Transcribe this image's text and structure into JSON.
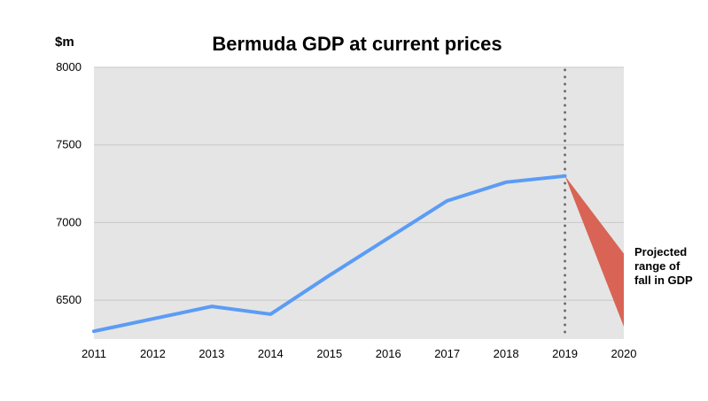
{
  "chart_data": {
    "type": "line",
    "title": "Bermuda GDP at current prices",
    "ylabel": "$m",
    "xlabel": "",
    "x": [
      2011,
      2012,
      2013,
      2014,
      2015,
      2016,
      2017,
      2018,
      2019,
      2020
    ],
    "xlim": [
      2011,
      2020
    ],
    "ylim": [
      6250,
      8000
    ],
    "yticks": [
      6500,
      7000,
      7500,
      8000
    ],
    "grid": true,
    "series": [
      {
        "x": [
          2011,
          2012,
          2013,
          2014,
          2015,
          2016,
          2017,
          2018,
          2019
        ],
        "values": [
          6300,
          6380,
          6460,
          6410,
          6660,
          6900,
          7140,
          7260,
          7300
        ],
        "color": "#5b9cf5"
      }
    ],
    "projection": {
      "from": {
        "x": 2019,
        "y": 7300
      },
      "to_x": 2020,
      "range": [
        6330,
        6800
      ],
      "color": "#d96455",
      "label": [
        "Projected",
        "range of",
        "fall in GDP"
      ]
    },
    "reference_line": {
      "x": 2019,
      "style": "dotted",
      "color": "#6e6e6e"
    },
    "colors": {
      "plot_background": "#e5e5e5",
      "gridline": "#c8c8c8"
    }
  }
}
